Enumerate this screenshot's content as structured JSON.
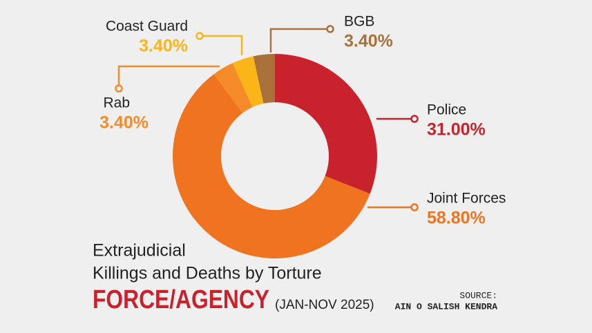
{
  "chart_data": {
    "type": "donut",
    "subtitle_lines": [
      "Extrajudicial",
      "Killings and Deaths by Torture"
    ],
    "title": "FORCE/AGENCY",
    "date_range": "(JAN-NOV 2025)",
    "source_label": "SOURCE:",
    "source": "AIN O SALISH KENDRA",
    "categories": [
      "Police",
      "Joint Forces",
      "Rab",
      "Coast Guard",
      "BGB"
    ],
    "values": [
      31.0,
      58.8,
      3.4,
      3.4,
      3.4
    ],
    "value_labels": [
      "31.00%",
      "58.80%",
      "3.40%",
      "3.40%",
      "3.40%"
    ],
    "colors": [
      "#c8232c",
      "#f07320",
      "#f58b28",
      "#fbb518",
      "#a8713a"
    ]
  }
}
